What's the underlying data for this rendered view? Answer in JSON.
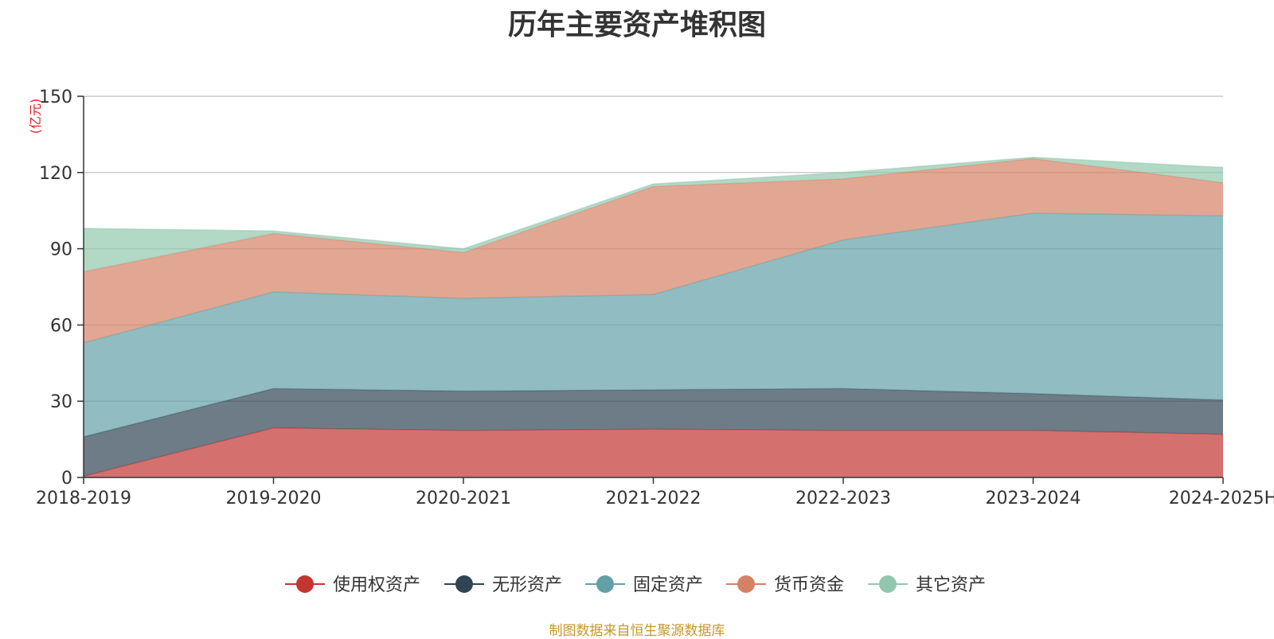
{
  "chart_data": {
    "type": "area",
    "stacked": true,
    "title": "历年主要资产堆积图",
    "ylabel": "(亿元)",
    "ylim": [
      0,
      150
    ],
    "yticks": [
      0,
      30,
      60,
      90,
      120,
      150
    ],
    "grid": true,
    "legend_position": "bottom",
    "categories": [
      "2018-2019",
      "2019-2020",
      "2020-2021",
      "2021-2022",
      "2022-2023",
      "2023-2024",
      "2024-2025H"
    ],
    "series": [
      {
        "name": "使用权资产",
        "color": "#c23531",
        "values": [
          0.5,
          19.5,
          18.5,
          19.0,
          18.5,
          18.5,
          17.0
        ]
      },
      {
        "name": "无形资产",
        "color": "#2f4554",
        "values": [
          15.5,
          15.5,
          15.5,
          15.5,
          16.5,
          14.5,
          13.5
        ]
      },
      {
        "name": "固定资产",
        "color": "#61a0a8",
        "values": [
          37.0,
          38.0,
          36.5,
          37.5,
          58.5,
          71.0,
          72.5
        ]
      },
      {
        "name": "货币资金",
        "color": "#d48265",
        "values": [
          28.0,
          23.0,
          18.0,
          42.5,
          24.0,
          21.5,
          13.0
        ]
      },
      {
        "name": "其它资产",
        "color": "#91c7ae",
        "values": [
          17.0,
          1.0,
          1.5,
          1.0,
          2.5,
          0.5,
          6.0
        ]
      }
    ]
  },
  "footer": {
    "source": "制图数据来自恒生聚源数据库"
  }
}
